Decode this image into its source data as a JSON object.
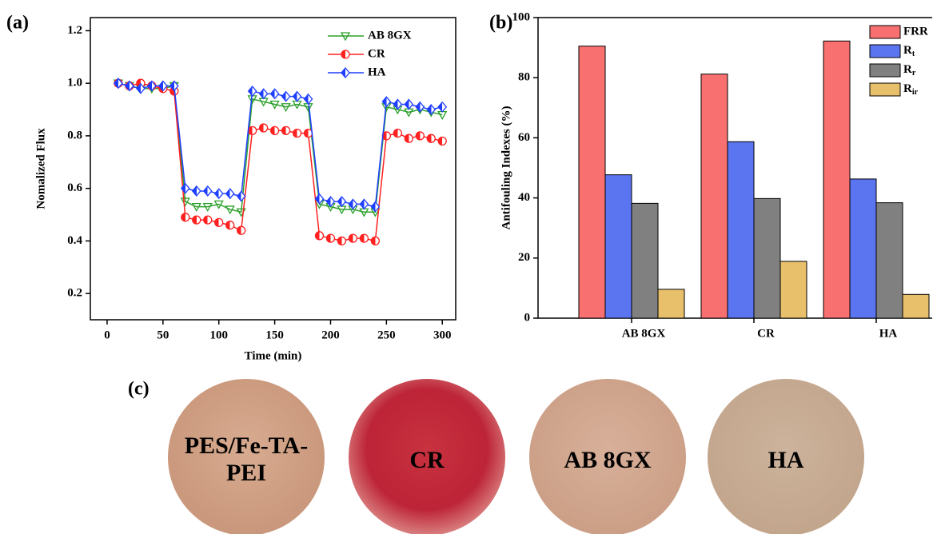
{
  "chart_data": [
    {
      "type": "line",
      "panel_label": "(a)",
      "xlabel": "Time (min)",
      "ylabel": "Nomalized Flux",
      "x": [
        10,
        20,
        30,
        40,
        50,
        60,
        70,
        80,
        90,
        100,
        110,
        120,
        130,
        140,
        150,
        160,
        170,
        180,
        190,
        200,
        210,
        220,
        230,
        240,
        250,
        260,
        270,
        280,
        290,
        300
      ],
      "xlim": [
        -15,
        312
      ],
      "ylim": [
        0.1,
        1.25
      ],
      "xticks": [
        0,
        50,
        100,
        150,
        200,
        250,
        300
      ],
      "yticks": [
        0.2,
        0.4,
        0.6,
        0.8,
        {
          "value": 1,
          "label": "1.0"
        },
        1.2
      ],
      "series": [
        {
          "name": "AB 8GX",
          "color": "#2ca02c",
          "marker": "triangle-down",
          "values": [
            1.0,
            0.99,
            0.98,
            0.98,
            0.98,
            0.99,
            0.55,
            0.53,
            0.53,
            0.54,
            0.52,
            0.51,
            0.94,
            0.93,
            0.92,
            0.91,
            0.92,
            0.91,
            0.54,
            0.53,
            0.52,
            0.52,
            0.51,
            0.51,
            0.91,
            0.9,
            0.89,
            0.9,
            0.89,
            0.88
          ]
        },
        {
          "name": "CR",
          "color": "#ff2020",
          "marker": "circle",
          "values": [
            1.0,
            0.99,
            1.0,
            0.99,
            0.98,
            0.97,
            0.49,
            0.48,
            0.48,
            0.47,
            0.46,
            0.44,
            0.82,
            0.83,
            0.82,
            0.82,
            0.81,
            0.81,
            0.42,
            0.41,
            0.4,
            0.41,
            0.41,
            0.4,
            0.8,
            0.81,
            0.79,
            0.8,
            0.79,
            0.78
          ]
        },
        {
          "name": "HA",
          "color": "#1f3fff",
          "marker": "diamond",
          "values": [
            1.0,
            0.99,
            0.98,
            0.99,
            0.99,
            0.99,
            0.6,
            0.59,
            0.59,
            0.58,
            0.58,
            0.57,
            0.97,
            0.96,
            0.96,
            0.95,
            0.95,
            0.94,
            0.56,
            0.55,
            0.55,
            0.54,
            0.54,
            0.53,
            0.93,
            0.92,
            0.92,
            0.91,
            0.9,
            0.91
          ]
        }
      ]
    },
    {
      "type": "bar",
      "panel_label": "(b)",
      "ylabel": "Antifouling Indexes (%)",
      "categories": [
        "AB 8GX",
        "CR",
        "HA"
      ],
      "ylim": [
        0,
        100
      ],
      "yticks": [
        0,
        20,
        40,
        60,
        80,
        100
      ],
      "series": [
        {
          "name": "FRR",
          "color": "#f87070",
          "values": [
            90.5,
            81.2,
            92.2
          ]
        },
        {
          "name": "Rt",
          "color": "#5b74f0",
          "values": [
            47.7,
            58.7,
            46.3
          ]
        },
        {
          "name": "Rr",
          "color": "#808080",
          "values": [
            38.2,
            39.8,
            38.4
          ]
        },
        {
          "name": "Rir",
          "color": "#e8bf6a",
          "values": [
            9.6,
            18.9,
            7.9
          ]
        }
      ]
    }
  ],
  "photos": {
    "panel_label": "(c)",
    "items": [
      {
        "label": "PES/Fe-TA-PEI"
      },
      {
        "label": "CR"
      },
      {
        "label": "AB 8GX"
      },
      {
        "label": "HA"
      }
    ]
  }
}
